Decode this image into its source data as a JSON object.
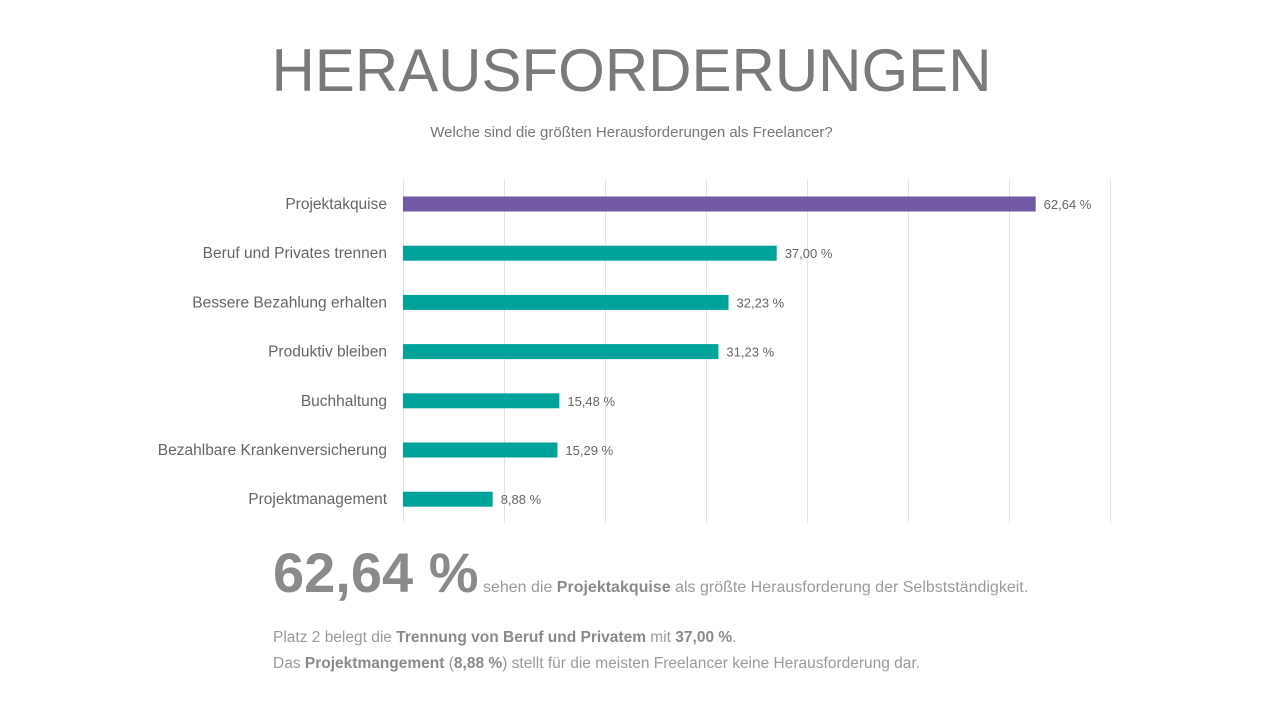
{
  "page": {
    "title": "HERAUSFORDERUNGEN",
    "subtitle": "Welche sind die größten Herausforderungen als Freelancer?"
  },
  "chart_data": {
    "type": "bar",
    "orientation": "horizontal",
    "categories": [
      "Projektakquise",
      "Beruf und Privates trennen",
      "Bessere Bezahlung erhalten",
      "Produktiv bleiben",
      "Buchhaltung",
      "Bezahlbare Krankenversicherung",
      "Projektmanagement"
    ],
    "values": [
      62.64,
      37.0,
      32.23,
      31.23,
      15.48,
      15.29,
      8.88
    ],
    "value_labels": [
      "62,64 %",
      "37,00 %",
      "32,23 %",
      "31,23 %",
      "15,48 %",
      "15,29 %",
      "8,88 %"
    ],
    "xlim": [
      0,
      70
    ],
    "grid": true,
    "colors": {
      "highlight": "#7359a4",
      "default": "#00a39a"
    }
  },
  "summary": {
    "big_value": "62,64 %",
    "s1_a": "sehen die",
    "s1_b": "Projektakquise",
    "s1_c": "als größte Herausforderung der Selbstständigkeit.",
    "s2_a": "Platz 2 belegt die",
    "s2_b": "Trennung von Beruf und Privatem",
    "s2_c": "mit",
    "s2_d": "37,00 %",
    "s2_e": ".",
    "s3_a": "Das",
    "s3_b": "Projektmangement",
    "s3_c": "(",
    "s3_d": "8,88 %",
    "s3_e": ") stellt für die meisten Freelancer keine Herausforderung dar."
  }
}
